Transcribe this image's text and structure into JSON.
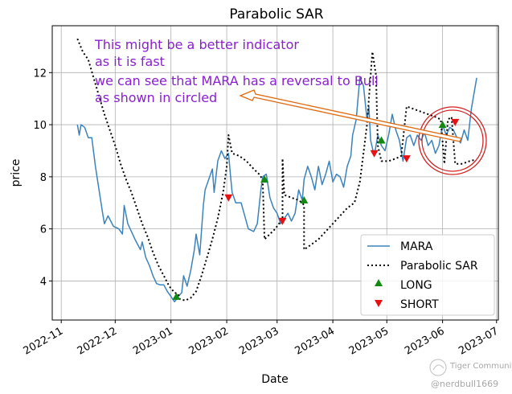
{
  "chart_data": {
    "type": "line",
    "title": "Parabolic SAR",
    "xlabel": "Date",
    "ylabel": "price",
    "x_ticks": [
      "2022-11",
      "2022-12",
      "2023-01",
      "2023-02",
      "2023-03",
      "2023-04",
      "2023-05",
      "2023-06",
      "2023-07"
    ],
    "y_ticks": [
      4,
      6,
      8,
      10,
      12
    ],
    "xlim": [
      "2022-10-27",
      "2023-07-02"
    ],
    "ylim": [
      2.5,
      13.8
    ],
    "grid": true,
    "legend_position": "lower-right",
    "series": [
      {
        "name": "MARA",
        "style": "line",
        "color": "#3b83bd",
        "points": [
          [
            "2022-11-10",
            10.0
          ],
          [
            "2022-11-11",
            9.6
          ],
          [
            "2022-11-12",
            10.0
          ],
          [
            "2022-11-14",
            9.9
          ],
          [
            "2022-11-16",
            9.5
          ],
          [
            "2022-11-18",
            9.5
          ],
          [
            "2022-11-20",
            8.4
          ],
          [
            "2022-11-22",
            7.5
          ],
          [
            "2022-11-24",
            6.6
          ],
          [
            "2022-11-25",
            6.2
          ],
          [
            "2022-11-27",
            6.5
          ],
          [
            "2022-11-30",
            6.1
          ],
          [
            "2022-12-03",
            6.0
          ],
          [
            "2022-12-05",
            5.8
          ],
          [
            "2022-12-06",
            6.9
          ],
          [
            "2022-12-08",
            6.2
          ],
          [
            "2022-12-12",
            5.6
          ],
          [
            "2022-12-15",
            5.2
          ],
          [
            "2022-12-16",
            5.5
          ],
          [
            "2022-12-18",
            4.9
          ],
          [
            "2022-12-20",
            4.6
          ],
          [
            "2022-12-22",
            4.2
          ],
          [
            "2022-12-24",
            3.9
          ],
          [
            "2022-12-26",
            3.85
          ],
          [
            "2022-12-28",
            3.85
          ],
          [
            "2022-12-30",
            3.6
          ],
          [
            "2023-01-01",
            3.4
          ],
          [
            "2023-01-03",
            3.2
          ],
          [
            "2023-01-05",
            3.4
          ],
          [
            "2023-01-07",
            3.55
          ],
          [
            "2023-01-08",
            4.2
          ],
          [
            "2023-01-10",
            3.8
          ],
          [
            "2023-01-12",
            4.4
          ],
          [
            "2023-01-14",
            5.2
          ],
          [
            "2023-01-15",
            5.8
          ],
          [
            "2023-01-17",
            5.0
          ],
          [
            "2023-01-19",
            6.9
          ],
          [
            "2023-01-20",
            7.5
          ],
          [
            "2023-01-22",
            7.9
          ],
          [
            "2023-01-24",
            8.3
          ],
          [
            "2023-01-25",
            7.4
          ],
          [
            "2023-01-27",
            8.6
          ],
          [
            "2023-01-29",
            9.0
          ],
          [
            "2023-01-31",
            8.7
          ],
          [
            "2023-02-02",
            8.9
          ],
          [
            "2023-02-03",
            8.1
          ],
          [
            "2023-02-04",
            7.4
          ],
          [
            "2023-02-06",
            7.0
          ],
          [
            "2023-02-09",
            7.0
          ],
          [
            "2023-02-11",
            6.5
          ],
          [
            "2023-02-13",
            6.0
          ],
          [
            "2023-02-16",
            5.9
          ],
          [
            "2023-02-18",
            6.2
          ],
          [
            "2023-02-20",
            7.5
          ],
          [
            "2023-02-21",
            8.0
          ],
          [
            "2023-02-23",
            8.1
          ],
          [
            "2023-02-25",
            7.2
          ],
          [
            "2023-02-27",
            6.8
          ],
          [
            "2023-03-01",
            6.6
          ],
          [
            "2023-03-03",
            6.2
          ],
          [
            "2023-03-05",
            6.4
          ],
          [
            "2023-03-07",
            6.6
          ],
          [
            "2023-03-09",
            6.3
          ],
          [
            "2023-03-11",
            6.6
          ],
          [
            "2023-03-13",
            7.5
          ],
          [
            "2023-03-15",
            7.1
          ],
          [
            "2023-03-16",
            7.9
          ],
          [
            "2023-03-18",
            8.4
          ],
          [
            "2023-03-20",
            8.0
          ],
          [
            "2023-03-22",
            7.5
          ],
          [
            "2023-03-24",
            8.4
          ],
          [
            "2023-03-26",
            7.7
          ],
          [
            "2023-03-28",
            8.1
          ],
          [
            "2023-03-30",
            8.6
          ],
          [
            "2023-04-01",
            7.8
          ],
          [
            "2023-04-03",
            8.1
          ],
          [
            "2023-04-05",
            8.0
          ],
          [
            "2023-04-07",
            7.6
          ],
          [
            "2023-04-09",
            8.4
          ],
          [
            "2023-04-11",
            8.8
          ],
          [
            "2023-04-12",
            9.6
          ],
          [
            "2023-04-14",
            10.2
          ],
          [
            "2023-04-15",
            11.0
          ],
          [
            "2023-04-16",
            11.8
          ],
          [
            "2023-04-18",
            11.5
          ],
          [
            "2023-04-20",
            10.2
          ],
          [
            "2023-04-21",
            10.7
          ],
          [
            "2023-04-22",
            9.4
          ],
          [
            "2023-04-24",
            8.8
          ],
          [
            "2023-04-26",
            9.6
          ],
          [
            "2023-04-28",
            9.2
          ],
          [
            "2023-04-30",
            9.0
          ],
          [
            "2023-05-02",
            9.6
          ],
          [
            "2023-05-04",
            10.4
          ],
          [
            "2023-05-06",
            9.8
          ],
          [
            "2023-05-08",
            9.4
          ],
          [
            "2023-05-10",
            8.6
          ],
          [
            "2023-05-12",
            9.5
          ],
          [
            "2023-05-14",
            9.6
          ],
          [
            "2023-05-16",
            9.2
          ],
          [
            "2023-05-18",
            9.6
          ],
          [
            "2023-05-20",
            9.4
          ],
          [
            "2023-05-22",
            9.7
          ],
          [
            "2023-05-24",
            9.2
          ],
          [
            "2023-05-26",
            9.4
          ],
          [
            "2023-05-28",
            8.9
          ],
          [
            "2023-05-30",
            9.2
          ],
          [
            "2023-06-01",
            10.0
          ],
          [
            "2023-06-03",
            9.6
          ],
          [
            "2023-06-05",
            9.9
          ],
          [
            "2023-06-07",
            9.8
          ],
          [
            "2023-06-09",
            9.5
          ],
          [
            "2023-06-11",
            9.3
          ],
          [
            "2023-06-13",
            9.8
          ],
          [
            "2023-06-15",
            9.4
          ],
          [
            "2023-06-17",
            10.6
          ],
          [
            "2023-06-20",
            11.8
          ]
        ]
      },
      {
        "name": "Parabolic SAR",
        "style": "dotted",
        "color": "#000000",
        "points": [
          [
            "2022-11-10",
            13.3
          ],
          [
            "2022-11-13",
            12.8
          ],
          [
            "2022-11-16",
            12.5
          ],
          [
            "2022-11-19",
            11.8
          ],
          [
            "2022-11-22",
            11.1
          ],
          [
            "2022-11-25",
            10.4
          ],
          [
            "2022-11-28",
            9.8
          ],
          [
            "2022-12-01",
            9.2
          ],
          [
            "2022-12-04",
            8.5
          ],
          [
            "2022-12-07",
            7.9
          ],
          [
            "2022-12-10",
            7.4
          ],
          [
            "2022-12-13",
            6.8
          ],
          [
            "2022-12-16",
            6.2
          ],
          [
            "2022-12-19",
            5.7
          ],
          [
            "2022-12-22",
            5.1
          ],
          [
            "2022-12-25",
            4.6
          ],
          [
            "2022-12-28",
            4.2
          ],
          [
            "2022-12-31",
            3.8
          ],
          [
            "2023-01-03",
            3.55
          ],
          [
            "2023-01-05",
            3.5
          ],
          [
            "2023-01-06",
            3.3
          ],
          [
            "2023-01-09",
            3.25
          ],
          [
            "2023-01-12",
            3.35
          ],
          [
            "2023-01-15",
            3.6
          ],
          [
            "2023-01-18",
            4.2
          ],
          [
            "2023-01-21",
            4.9
          ],
          [
            "2023-01-24",
            5.6
          ],
          [
            "2023-01-27",
            6.4
          ],
          [
            "2023-01-30",
            7.4
          ],
          [
            "2023-02-01",
            8.4
          ],
          [
            "2023-02-02",
            9.6
          ],
          [
            "2023-02-04",
            8.9
          ],
          [
            "2023-02-08",
            8.8
          ],
          [
            "2023-02-12",
            8.6
          ],
          [
            "2023-02-16",
            8.3
          ],
          [
            "2023-02-19",
            8.1
          ],
          [
            "2023-02-21",
            7.9
          ],
          [
            "2023-02-22",
            5.6
          ],
          [
            "2023-02-25",
            5.8
          ],
          [
            "2023-02-28",
            6.0
          ],
          [
            "2023-03-02",
            6.2
          ],
          [
            "2023-03-04",
            6.3
          ],
          [
            "2023-03-04",
            8.7
          ],
          [
            "2023-03-05",
            7.3
          ],
          [
            "2023-03-09",
            7.2
          ],
          [
            "2023-03-13",
            7.1
          ],
          [
            "2023-03-15",
            7.0
          ],
          [
            "2023-03-16",
            6.9
          ],
          [
            "2023-03-16",
            5.2
          ],
          [
            "2023-03-20",
            5.4
          ],
          [
            "2023-03-24",
            5.6
          ],
          [
            "2023-03-28",
            5.9
          ],
          [
            "2023-04-01",
            6.2
          ],
          [
            "2023-04-05",
            6.5
          ],
          [
            "2023-04-09",
            6.8
          ],
          [
            "2023-04-13",
            7.0
          ],
          [
            "2023-04-16",
            7.8
          ],
          [
            "2023-04-18",
            8.9
          ],
          [
            "2023-04-20",
            10.0
          ],
          [
            "2023-04-23",
            12.8
          ],
          [
            "2023-04-25",
            11.9
          ],
          [
            "2023-04-26",
            9.2
          ],
          [
            "2023-04-28",
            8.6
          ],
          [
            "2023-05-02",
            8.6
          ],
          [
            "2023-05-06",
            8.7
          ],
          [
            "2023-05-09",
            8.8
          ],
          [
            "2023-05-12",
            10.7
          ],
          [
            "2023-05-16",
            10.6
          ],
          [
            "2023-05-20",
            10.5
          ],
          [
            "2023-05-24",
            10.4
          ],
          [
            "2023-05-28",
            10.3
          ],
          [
            "2023-05-31",
            10.2
          ],
          [
            "2023-06-02",
            8.5
          ],
          [
            "2023-06-04",
            10.2
          ],
          [
            "2023-06-06",
            10.3
          ],
          [
            "2023-06-08",
            8.5
          ],
          [
            "2023-06-12",
            8.5
          ],
          [
            "2023-06-16",
            8.6
          ],
          [
            "2023-06-19",
            8.65
          ]
        ]
      }
    ],
    "markers": {
      "LONG": {
        "color": "#128a12",
        "shape": "triangle-up",
        "points": [
          [
            "2023-01-04",
            3.4
          ],
          [
            "2023-02-22",
            7.9
          ],
          [
            "2023-03-16",
            7.1
          ],
          [
            "2023-04-28",
            9.4
          ],
          [
            "2023-06-01",
            10.0
          ]
        ]
      },
      "SHORT": {
        "color": "#e81010",
        "shape": "triangle-down",
        "points": [
          [
            "2023-02-02",
            7.2
          ],
          [
            "2023-03-04",
            6.3
          ],
          [
            "2023-04-24",
            8.9
          ],
          [
            "2023-05-12",
            8.7
          ],
          [
            "2023-06-08",
            10.1
          ]
        ]
      }
    },
    "legend": [
      "MARA",
      "Parabolic SAR",
      "LONG",
      "SHORT"
    ],
    "annotation": {
      "lines": [
        "This might be a better indicator",
        "as it is fast",
        "we can see that MARA has a reversal to Bull",
        "as shown in circled"
      ],
      "color": "#8a1fd0",
      "arrow_color": "#e06a10",
      "circle_color": "#d42020"
    }
  },
  "watermark": {
    "brand": "Tiger Community",
    "handle": "@nerdbull1669"
  }
}
